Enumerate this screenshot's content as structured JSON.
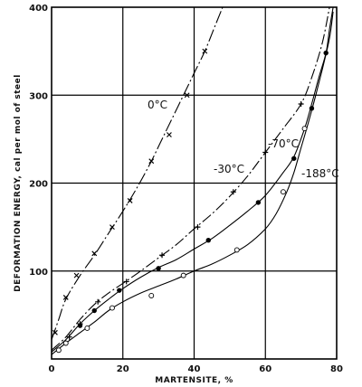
{
  "chart_data": {
    "type": "scatter",
    "xlabel": "MARTENSITE, %",
    "ylabel": "DEFORMATION ENERGY, cal per mol of steel",
    "xlim": [
      0,
      80
    ],
    "ylim": [
      0,
      400
    ],
    "x_ticks": [
      0,
      20,
      40,
      60,
      80
    ],
    "y_ticks": [
      100,
      200,
      300,
      400
    ],
    "grid": true,
    "series": [
      {
        "name": "0°C",
        "marker": "x",
        "points": [
          [
            1,
            30
          ],
          [
            4,
            70
          ],
          [
            7,
            95
          ],
          [
            12,
            120
          ],
          [
            17,
            150
          ],
          [
            22,
            180
          ],
          [
            28,
            225
          ],
          [
            33,
            255
          ],
          [
            38,
            300
          ],
          [
            43,
            350
          ]
        ],
        "curve": [
          [
            0,
            22
          ],
          [
            2,
            45
          ],
          [
            4,
            68
          ],
          [
            8,
            95
          ],
          [
            12,
            118
          ],
          [
            16,
            143
          ],
          [
            20,
            168
          ],
          [
            24,
            195
          ],
          [
            28,
            225
          ],
          [
            31,
            250
          ],
          [
            34,
            275
          ],
          [
            37,
            300
          ],
          [
            40,
            325
          ],
          [
            43,
            350
          ],
          [
            46,
            380
          ],
          [
            48,
            400
          ]
        ]
      },
      {
        "name": "-30°C",
        "marker": "plus",
        "points": [
          [
            5,
            25
          ],
          [
            8,
            40
          ],
          [
            13,
            65
          ],
          [
            21,
            88
          ],
          [
            31,
            118
          ],
          [
            41,
            150
          ],
          [
            51,
            190
          ],
          [
            60,
            235
          ],
          [
            70,
            290
          ]
        ],
        "curve": [
          [
            0,
            10
          ],
          [
            4,
            25
          ],
          [
            8,
            45
          ],
          [
            12,
            62
          ],
          [
            16,
            75
          ],
          [
            20,
            86
          ],
          [
            25,
            100
          ],
          [
            30,
            115
          ],
          [
            35,
            130
          ],
          [
            40,
            148
          ],
          [
            45,
            165
          ],
          [
            50,
            185
          ],
          [
            55,
            208
          ],
          [
            60,
            235
          ],
          [
            65,
            262
          ],
          [
            70,
            290
          ],
          [
            73,
            320
          ],
          [
            76,
            360
          ],
          [
            78,
            400
          ]
        ]
      },
      {
        "name": "-70°C",
        "marker": "filled-circle",
        "points": [
          [
            8,
            38
          ],
          [
            12,
            55
          ],
          [
            19,
            78
          ],
          [
            30,
            103
          ],
          [
            44,
            135
          ],
          [
            58,
            178
          ],
          [
            68,
            228
          ],
          [
            73,
            285
          ],
          [
            77,
            348
          ]
        ],
        "curve": [
          [
            0,
            8
          ],
          [
            4,
            22
          ],
          [
            8,
            40
          ],
          [
            12,
            55
          ],
          [
            16,
            68
          ],
          [
            20,
            80
          ],
          [
            25,
            93
          ],
          [
            30,
            104
          ],
          [
            35,
            113
          ],
          [
            40,
            125
          ],
          [
            45,
            137
          ],
          [
            50,
            152
          ],
          [
            55,
            168
          ],
          [
            60,
            186
          ],
          [
            65,
            212
          ],
          [
            68,
            230
          ],
          [
            71,
            262
          ],
          [
            73,
            290
          ],
          [
            75,
            320
          ],
          [
            77,
            348
          ],
          [
            78,
            375
          ],
          [
            79,
            400
          ]
        ]
      },
      {
        "name": "-188°C",
        "marker": "open-circle",
        "points": [
          [
            2,
            10
          ],
          [
            4,
            18
          ],
          [
            10,
            35
          ],
          [
            17,
            58
          ],
          [
            28,
            72
          ],
          [
            37,
            95
          ],
          [
            52,
            124
          ],
          [
            65,
            190
          ],
          [
            71,
            262
          ]
        ],
        "curve": [
          [
            0,
            5
          ],
          [
            4,
            18
          ],
          [
            8,
            30
          ],
          [
            12,
            42
          ],
          [
            16,
            55
          ],
          [
            20,
            65
          ],
          [
            25,
            75
          ],
          [
            30,
            83
          ],
          [
            35,
            91
          ],
          [
            40,
            100
          ],
          [
            45,
            108
          ],
          [
            50,
            118
          ],
          [
            55,
            130
          ],
          [
            60,
            148
          ],
          [
            63,
            165
          ],
          [
            66,
            190
          ],
          [
            68,
            212
          ],
          [
            70,
            240
          ],
          [
            72,
            268
          ],
          [
            74,
            298
          ],
          [
            76,
            330
          ],
          [
            78,
            365
          ],
          [
            79,
            395
          ]
        ]
      }
    ]
  }
}
